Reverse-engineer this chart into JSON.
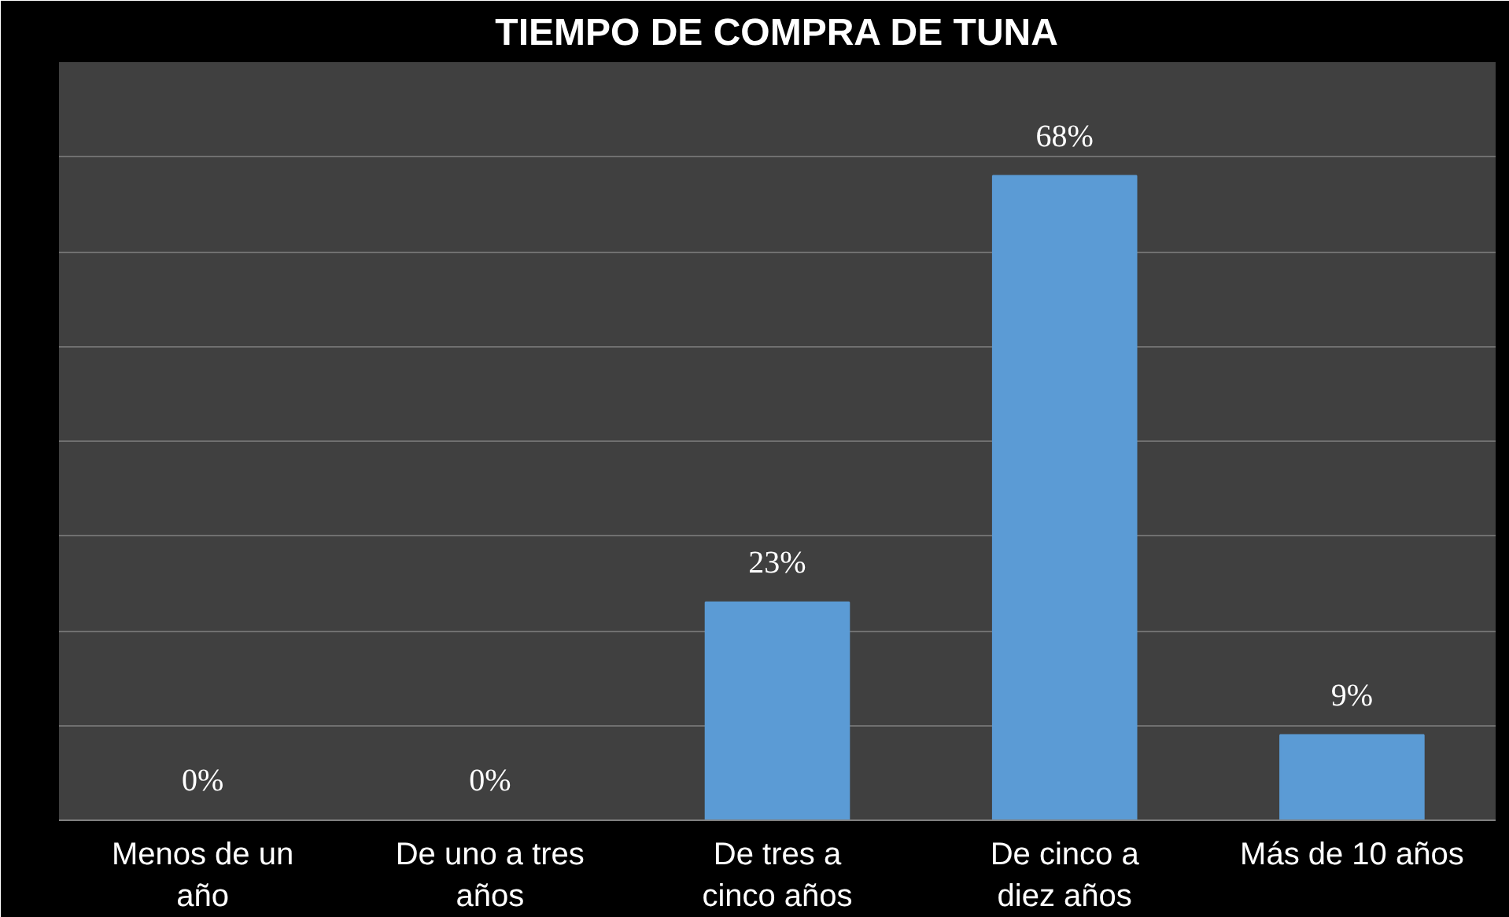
{
  "chart_data": {
    "type": "bar",
    "title": "TIEMPO DE COMPRA DE TUNA",
    "categories": [
      "Menos de un año",
      "De uno a tres años",
      "De tres a cinco años",
      "De cinco a diez años",
      "Más de 10 años"
    ],
    "values": [
      0,
      0,
      23,
      68,
      9
    ],
    "value_labels": [
      "0%",
      "0%",
      "23%",
      "68%",
      "9%"
    ],
    "color": "#5b9bd5",
    "ylim": [
      0,
      80
    ],
    "yticks": [
      {
        "value": 0,
        "label": null
      },
      {
        "value": 10,
        "label": null
      },
      {
        "value": 20,
        "label": null
      },
      {
        "value": 30,
        "label": null
      },
      {
        "value": 40,
        "label": null
      },
      {
        "value": 50,
        "label": null
      },
      {
        "value": 60,
        "label": null
      },
      {
        "value": 70,
        "label": null
      },
      {
        "value": 80,
        "label": null
      }
    ],
    "tick_labels": "x",
    "grid": "y"
  }
}
